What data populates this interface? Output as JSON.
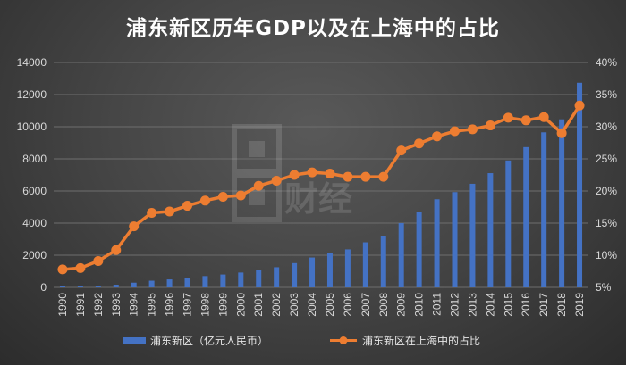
{
  "chart_data": {
    "type": "bar",
    "title": "浦东新区历年GDP以及在上海中的占比",
    "categories": [
      "1990",
      "1991",
      "1992",
      "1993",
      "1994",
      "1995",
      "1996",
      "1997",
      "1998",
      "1999",
      "2000",
      "2001",
      "2002",
      "2003",
      "2004",
      "2005",
      "2006",
      "2007",
      "2008",
      "2009",
      "2010",
      "2011",
      "2012",
      "2013",
      "2014",
      "2015",
      "2016",
      "2017",
      "2018",
      "2019"
    ],
    "series": [
      {
        "name": "浦东新区（亿元人民币）",
        "type": "bar",
        "axis": "left",
        "color": "#4472c4",
        "values": [
          60,
          72,
          102,
          165,
          292,
          415,
          496,
          608,
          704,
          801,
          923,
          1082,
          1253,
          1510,
          1858,
          2120,
          2365,
          2804,
          3196,
          4002,
          4708,
          5485,
          5930,
          6448,
          7109,
          7898,
          8731,
          9651,
          10460,
          12734
        ]
      },
      {
        "name": "浦东新区在上海中的占比",
        "type": "line",
        "axis": "right",
        "color": "#ed7d31",
        "values": [
          7.8,
          8.0,
          9.1,
          10.8,
          14.5,
          16.6,
          16.8,
          17.7,
          18.5,
          19.1,
          19.3,
          20.8,
          21.6,
          22.5,
          22.9,
          22.7,
          22.2,
          22.2,
          22.2,
          26.3,
          27.4,
          28.5,
          29.3,
          29.6,
          30.2,
          31.4,
          31.0,
          31.5,
          29.0,
          33.3
        ]
      }
    ],
    "ylim_left": [
      0,
      14000
    ],
    "yticks_left": [
      "0",
      "2000",
      "4000",
      "6000",
      "8000",
      "10000",
      "12000",
      "14000"
    ],
    "ylim_right": [
      5,
      40
    ],
    "yticks_right": [
      "5%",
      "10%",
      "15%",
      "20%",
      "25%",
      "30%",
      "35%",
      "40%"
    ],
    "grid": true,
    "legend_position": "bottom"
  },
  "colors": {
    "bar": "#4472c4",
    "line": "#ed7d31",
    "grid": "#6e6e6e",
    "text": "#d9d9d9"
  },
  "watermark_text": "面包财经"
}
